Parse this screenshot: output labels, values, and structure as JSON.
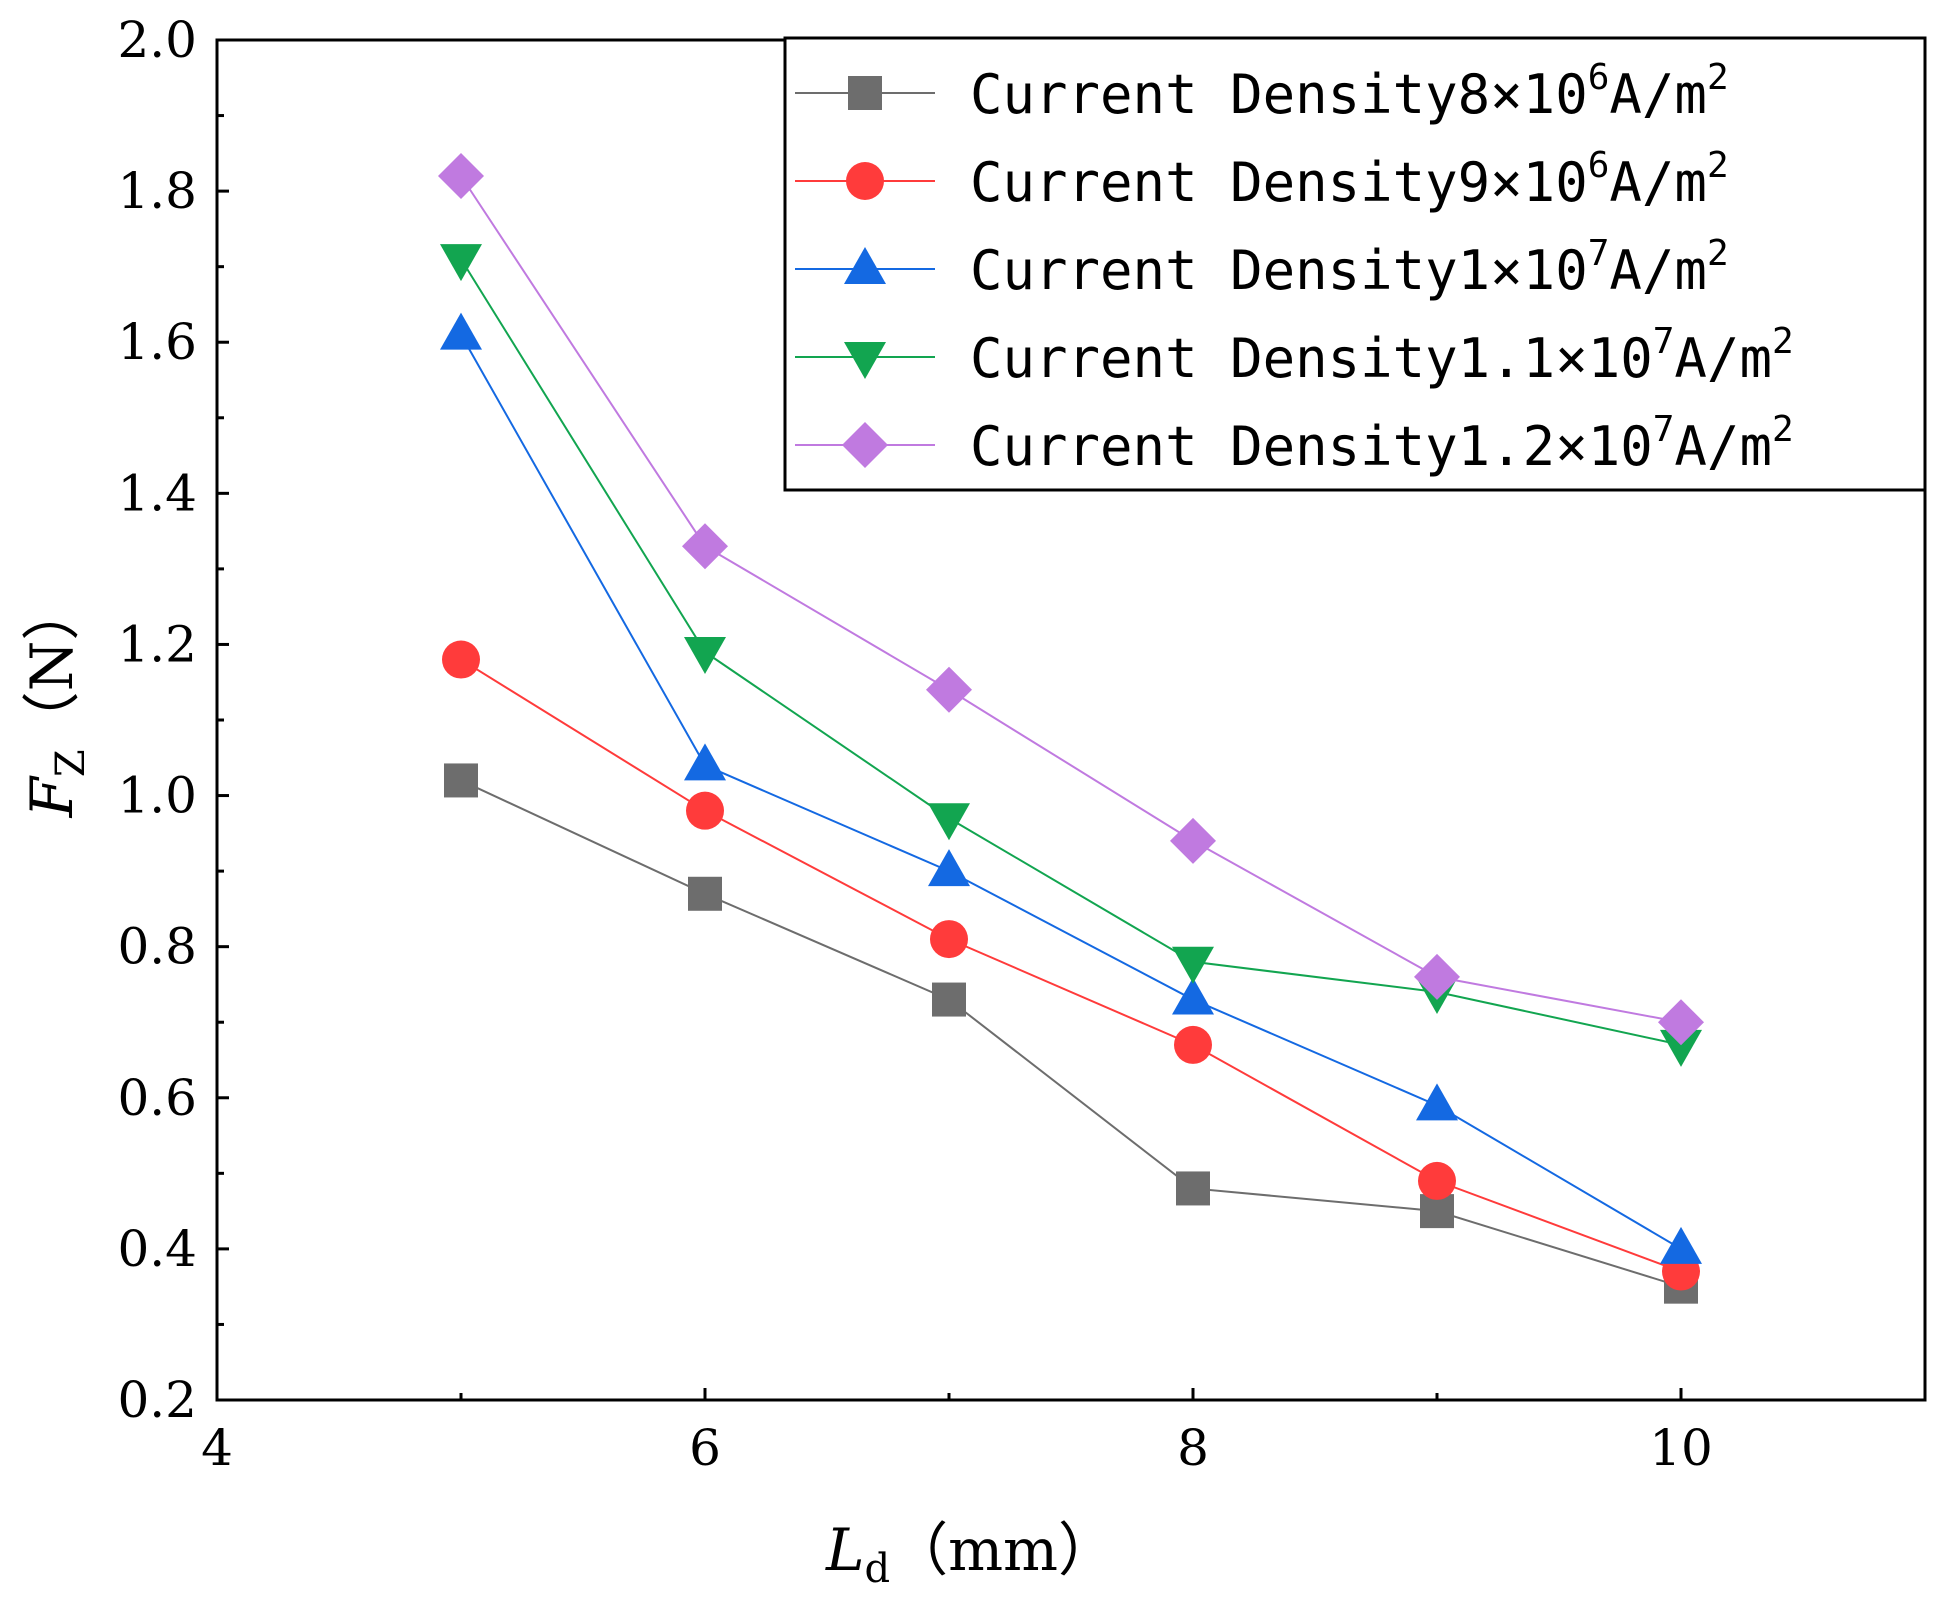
{
  "chart_data": {
    "type": "line",
    "xlabel": {
      "main": "L",
      "sub": "d",
      "unit": "（mm）"
    },
    "ylabel": {
      "main": "F",
      "sub": "Z",
      "unit": "（N）"
    },
    "xlim": [
      4,
      11
    ],
    "ylim": [
      0.2,
      2.0
    ],
    "x_ticks": [
      "4",
      "6",
      "8",
      "10"
    ],
    "y_ticks": [
      "0.2",
      "0.4",
      "0.6",
      "0.8",
      "1.0",
      "1.2",
      "1.4",
      "1.6",
      "1.8",
      "2.0"
    ],
    "x": [
      5,
      6,
      7,
      8,
      9,
      10
    ],
    "legend_position": "top-right",
    "series": [
      {
        "name": "Current Density8×10⁶A/m²",
        "base": "Current Density8×10",
        "exp": "6",
        "unit": "A/m",
        "unit_exp": "2",
        "color": "#6d6d6d",
        "marker": "square",
        "values": [
          1.02,
          0.87,
          0.73,
          0.48,
          0.45,
          0.35
        ]
      },
      {
        "name": "Current Density9×10⁶A/m²",
        "base": "Current Density9×10",
        "exp": "6",
        "unit": "A/m",
        "unit_exp": "2",
        "color": "#ff3b3b",
        "marker": "circle",
        "values": [
          1.18,
          0.98,
          0.81,
          0.67,
          0.49,
          0.37
        ]
      },
      {
        "name": "Current Density1×10⁷A/m²",
        "base": "Current Density1×10",
        "exp": "7",
        "unit": "A/m",
        "unit_exp": "2",
        "color": "#1469e2",
        "marker": "triangle-up",
        "values": [
          1.61,
          1.04,
          0.9,
          0.73,
          0.59,
          0.4
        ]
      },
      {
        "name": "Current Density1.1×10⁷A/m²",
        "base": "Current Density1.1×10",
        "exp": "7",
        "unit": "A/m",
        "unit_exp": "2",
        "color": "#12a550",
        "marker": "triangle-down",
        "values": [
          1.71,
          1.19,
          0.97,
          0.78,
          0.74,
          0.67
        ]
      },
      {
        "name": "Current Density1.2×10⁷A/m²",
        "base": "Current Density1.2×10",
        "exp": "7",
        "unit": "A/m",
        "unit_exp": "2",
        "color": "#c07ae0",
        "marker": "diamond",
        "values": [
          1.82,
          1.33,
          1.14,
          0.94,
          0.76,
          0.7
        ]
      }
    ]
  }
}
